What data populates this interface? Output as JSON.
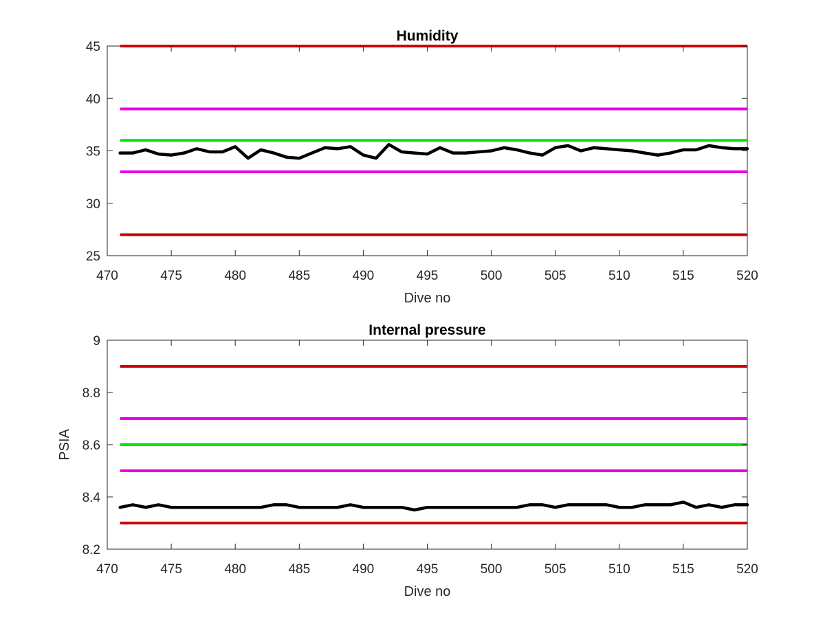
{
  "chart_data": [
    {
      "type": "line",
      "title": "Humidity",
      "xlabel": "Dive no",
      "ylabel": "",
      "xlim": [
        470,
        520
      ],
      "ylim": [
        25,
        45
      ],
      "xticks": [
        470,
        475,
        480,
        485,
        490,
        495,
        500,
        505,
        510,
        515,
        520
      ],
      "yticks": [
        25,
        30,
        35,
        40,
        45
      ],
      "grid": false,
      "threshold_lines": [
        {
          "y": 45,
          "color": "#cc0000"
        },
        {
          "y": 39,
          "color": "#e600e6"
        },
        {
          "y": 36,
          "color": "#00e600"
        },
        {
          "y": 33,
          "color": "#e600e6"
        },
        {
          "y": 27,
          "color": "#cc0000"
        }
      ],
      "series": [
        {
          "color": "#000000",
          "x": [
            471,
            472,
            473,
            474,
            475,
            476,
            477,
            478,
            479,
            480,
            481,
            482,
            483,
            484,
            485,
            486,
            487,
            488,
            489,
            490,
            491,
            492,
            493,
            494,
            495,
            496,
            497,
            498,
            499,
            500,
            501,
            502,
            503,
            504,
            505,
            506,
            507,
            508,
            509,
            510,
            511,
            512,
            513,
            514,
            515,
            516,
            517,
            518,
            519,
            520
          ],
          "y": [
            34.8,
            34.8,
            35.1,
            34.7,
            34.6,
            34.8,
            35.2,
            34.9,
            34.9,
            35.4,
            34.3,
            35.1,
            34.8,
            34.4,
            34.3,
            34.8,
            35.3,
            35.2,
            35.4,
            34.6,
            34.3,
            35.6,
            34.9,
            34.8,
            34.7,
            35.3,
            34.8,
            34.8,
            34.9,
            35.0,
            35.3,
            35.1,
            34.8,
            34.6,
            35.3,
            35.5,
            35.0,
            35.3,
            35.2,
            35.1,
            35.0,
            34.8,
            34.6,
            34.8,
            35.1,
            35.1,
            35.5,
            35.3,
            35.2,
            35.2
          ]
        }
      ]
    },
    {
      "type": "line",
      "title": "Internal pressure",
      "xlabel": "Dive no",
      "ylabel": "PSIA",
      "xlim": [
        470,
        520
      ],
      "ylim": [
        8.2,
        9
      ],
      "xticks": [
        470,
        475,
        480,
        485,
        490,
        495,
        500,
        505,
        510,
        515,
        520
      ],
      "yticks": [
        8.2,
        8.4,
        8.6,
        8.8,
        9
      ],
      "grid": false,
      "threshold_lines": [
        {
          "y": 8.9,
          "color": "#cc0000"
        },
        {
          "y": 8.7,
          "color": "#e600e6"
        },
        {
          "y": 8.6,
          "color": "#00e600"
        },
        {
          "y": 8.5,
          "color": "#e600e6"
        },
        {
          "y": 8.3,
          "color": "#cc0000"
        }
      ],
      "series": [
        {
          "color": "#000000",
          "x": [
            471,
            472,
            473,
            474,
            475,
            476,
            477,
            478,
            479,
            480,
            481,
            482,
            483,
            484,
            485,
            486,
            487,
            488,
            489,
            490,
            491,
            492,
            493,
            494,
            495,
            496,
            497,
            498,
            499,
            500,
            501,
            502,
            503,
            504,
            505,
            506,
            507,
            508,
            509,
            510,
            511,
            512,
            513,
            514,
            515,
            516,
            517,
            518,
            519,
            520
          ],
          "y": [
            8.36,
            8.37,
            8.36,
            8.37,
            8.36,
            8.36,
            8.36,
            8.36,
            8.36,
            8.36,
            8.36,
            8.36,
            8.37,
            8.37,
            8.36,
            8.36,
            8.36,
            8.36,
            8.37,
            8.36,
            8.36,
            8.36,
            8.36,
            8.35,
            8.36,
            8.36,
            8.36,
            8.36,
            8.36,
            8.36,
            8.36,
            8.36,
            8.37,
            8.37,
            8.36,
            8.37,
            8.37,
            8.37,
            8.37,
            8.36,
            8.36,
            8.37,
            8.37,
            8.37,
            8.38,
            8.36,
            8.37,
            8.36,
            8.37,
            8.37
          ]
        }
      ]
    }
  ]
}
